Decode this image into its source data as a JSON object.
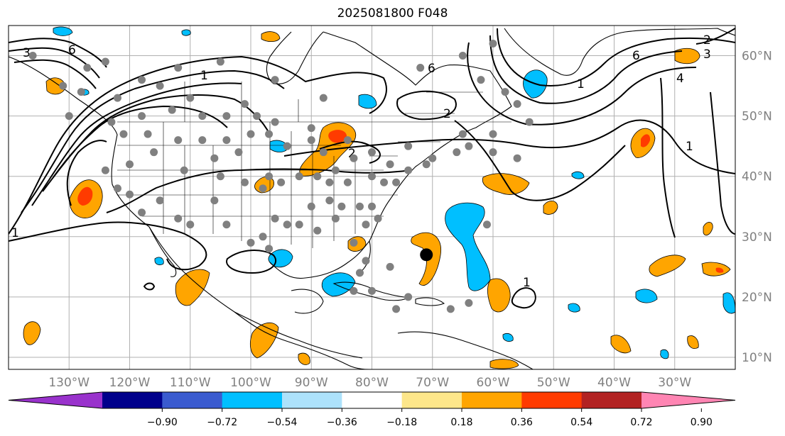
{
  "title": "2025081800 F048",
  "map": {
    "projection": "PlateCarree",
    "extent": {
      "lon_min": -140,
      "lon_max": -20,
      "lat_min": 8,
      "lat_max": 65
    },
    "gridlines": true,
    "lon_ticks": [
      {
        "value": -130,
        "label": "130°W"
      },
      {
        "value": -120,
        "label": "120°W"
      },
      {
        "value": -110,
        "label": "110°W"
      },
      {
        "value": -100,
        "label": "100°W"
      },
      {
        "value": -90,
        "label": "90°W"
      },
      {
        "value": -80,
        "label": "80°W"
      },
      {
        "value": -70,
        "label": "70°W"
      },
      {
        "value": -60,
        "label": "60°W"
      },
      {
        "value": -50,
        "label": "50°W"
      },
      {
        "value": -40,
        "label": "40°W"
      },
      {
        "value": -30,
        "label": "30°W"
      }
    ],
    "lat_ticks": [
      {
        "value": 60,
        "label": "60°N"
      },
      {
        "value": 50,
        "label": "50°N"
      },
      {
        "value": 40,
        "label": "40°N"
      },
      {
        "value": 30,
        "label": "30°N"
      },
      {
        "value": 20,
        "label": "20°N"
      },
      {
        "value": 10,
        "label": "10°N"
      }
    ],
    "contour_labels": [
      "1",
      "2",
      "3",
      "4",
      "6"
    ],
    "marker": {
      "lon": -71,
      "lat": 27,
      "color": "#000000"
    },
    "stations_color": "#808080",
    "stations": [
      [
        -136,
        60
      ],
      [
        -124,
        59
      ],
      [
        -115,
        55
      ],
      [
        -112,
        58
      ],
      [
        -105,
        59
      ],
      [
        -101,
        52
      ],
      [
        -96,
        56
      ],
      [
        -88,
        53
      ],
      [
        -72,
        58
      ],
      [
        -65,
        60
      ],
      [
        -62,
        56
      ],
      [
        -60,
        62
      ],
      [
        -58,
        54
      ],
      [
        -54,
        49
      ],
      [
        -56,
        52
      ],
      [
        -60,
        47
      ],
      [
        -64,
        45
      ],
      [
        -66,
        44
      ],
      [
        -70,
        43
      ],
      [
        -74,
        45
      ],
      [
        -80,
        44
      ],
      [
        -84,
        46
      ],
      [
        -90,
        48
      ],
      [
        -96,
        49
      ],
      [
        -99,
        50
      ],
      [
        -104,
        50
      ],
      [
        -108,
        50
      ],
      [
        -113,
        51
      ],
      [
        -118,
        50
      ],
      [
        -123,
        49
      ],
      [
        -121,
        47
      ],
      [
        -117,
        47
      ],
      [
        -112,
        46
      ],
      [
        -108,
        46
      ],
      [
        -104,
        46
      ],
      [
        -100,
        47
      ],
      [
        -97,
        47
      ],
      [
        -94,
        45
      ],
      [
        -90,
        46
      ],
      [
        -88,
        44
      ],
      [
        -86,
        41
      ],
      [
        -83,
        43
      ],
      [
        -80,
        40
      ],
      [
        -78,
        39
      ],
      [
        -76,
        39
      ],
      [
        -74,
        41
      ],
      [
        -71,
        42
      ],
      [
        -77,
        42
      ],
      [
        -80,
        35
      ],
      [
        -79,
        33
      ],
      [
        -81,
        32
      ],
      [
        -82,
        35
      ],
      [
        -85,
        35
      ],
      [
        -87,
        36
      ],
      [
        -90,
        35
      ],
      [
        -92,
        32
      ],
      [
        -94,
        32
      ],
      [
        -96,
        33
      ],
      [
        -98,
        30
      ],
      [
        -97,
        28
      ],
      [
        -100,
        29
      ],
      [
        -104,
        32
      ],
      [
        -106,
        36
      ],
      [
        -110,
        32
      ],
      [
        -112,
        33
      ],
      [
        -115,
        36
      ],
      [
        -118,
        34
      ],
      [
        -120,
        37
      ],
      [
        -122,
        38
      ],
      [
        -124,
        41
      ],
      [
        -120,
        42
      ],
      [
        -116,
        44
      ],
      [
        -111,
        41
      ],
      [
        -105,
        40
      ],
      [
        -101,
        39
      ],
      [
        -98,
        38
      ],
      [
        -95,
        39
      ],
      [
        -92,
        40
      ],
      [
        -89,
        40
      ],
      [
        -87,
        39
      ],
      [
        -84,
        39
      ],
      [
        -86,
        33
      ],
      [
        -89,
        31
      ],
      [
        -83,
        29
      ],
      [
        -81,
        26
      ],
      [
        -82,
        24
      ],
      [
        -77,
        25
      ],
      [
        -80,
        21
      ],
      [
        -74,
        20
      ],
      [
        -67,
        18
      ],
      [
        -64,
        19
      ],
      [
        -76,
        18
      ],
      [
        -61,
        32
      ],
      [
        -56,
        43
      ],
      [
        -60,
        44
      ],
      [
        -83,
        21
      ],
      [
        -65,
        47
      ],
      [
        -128,
        54
      ],
      [
        -131,
        55
      ],
      [
        -130,
        50
      ],
      [
        -127,
        58
      ],
      [
        -118,
        56
      ],
      [
        -122,
        53
      ],
      [
        -110,
        53
      ],
      [
        -97,
        40
      ],
      [
        -102,
        44
      ],
      [
        -106,
        43
      ]
    ]
  },
  "colorbar": {
    "colors": [
      "#9932CC",
      "#00008B",
      "#3A5BCF",
      "#00BFFF",
      "#ADE2FB",
      "#FFFFFF",
      "#FDE68A",
      "#FFA500",
      "#FF3B00",
      "#B22222",
      "#FF85B3"
    ],
    "ticks": [
      "−0.90",
      "−0.72",
      "−0.54",
      "−0.36",
      "−0.18",
      "0.18",
      "0.36",
      "0.54",
      "0.72",
      "0.90"
    ]
  }
}
